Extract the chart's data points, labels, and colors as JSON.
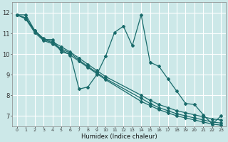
{
  "xlabel": "Humidex (Indice chaleur)",
  "bg_color": "#cce8e8",
  "grid_color": "#ffffff",
  "line_color": "#1a6b6b",
  "xlim": [
    -0.5,
    23.5
  ],
  "ylim": [
    6.5,
    12.5
  ],
  "yticks": [
    7,
    8,
    9,
    10,
    11,
    12
  ],
  "xticks": [
    0,
    1,
    2,
    3,
    4,
    5,
    6,
    7,
    8,
    9,
    10,
    11,
    12,
    13,
    14,
    15,
    16,
    17,
    18,
    19,
    20,
    21,
    22,
    23
  ],
  "series": [
    {
      "x": [
        0,
        1,
        2,
        3,
        4,
        5,
        6,
        7,
        8,
        9,
        10,
        11,
        12,
        13,
        14,
        15,
        16,
        17,
        18,
        19,
        20,
        21,
        22,
        23
      ],
      "y": [
        11.9,
        11.9,
        11.15,
        10.7,
        10.7,
        10.1,
        10.0,
        8.3,
        8.4,
        9.0,
        9.9,
        11.05,
        11.35,
        10.4,
        11.9,
        9.6,
        9.4,
        8.8,
        8.2,
        7.6,
        7.55,
        7.05,
        6.6,
        7.0
      ]
    },
    {
      "x": [
        0,
        1,
        2,
        3,
        4,
        5,
        6,
        7,
        8,
        9,
        10,
        14,
        15,
        16,
        17,
        18,
        19,
        20,
        21,
        22,
        23
      ],
      "y": [
        11.9,
        11.75,
        11.15,
        10.75,
        10.6,
        10.35,
        10.1,
        9.8,
        9.5,
        9.2,
        8.9,
        8.0,
        7.75,
        7.55,
        7.4,
        7.25,
        7.15,
        7.05,
        6.95,
        6.85,
        6.8
      ]
    },
    {
      "x": [
        0,
        1,
        2,
        3,
        4,
        5,
        6,
        7,
        8,
        9,
        10,
        14,
        15,
        16,
        17,
        18,
        19,
        20,
        21,
        22,
        23
      ],
      "y": [
        11.9,
        11.75,
        11.1,
        10.7,
        10.55,
        10.25,
        10.05,
        9.7,
        9.4,
        9.1,
        8.8,
        7.85,
        7.6,
        7.4,
        7.25,
        7.1,
        7.0,
        6.9,
        6.8,
        6.7,
        6.65
      ]
    },
    {
      "x": [
        0,
        1,
        2,
        3,
        4,
        5,
        6,
        7,
        8,
        9,
        10,
        14,
        15,
        16,
        17,
        18,
        19,
        20,
        21,
        22,
        23
      ],
      "y": [
        11.9,
        11.7,
        11.05,
        10.65,
        10.5,
        10.2,
        9.95,
        9.65,
        9.35,
        9.05,
        8.75,
        7.7,
        7.5,
        7.3,
        7.15,
        7.0,
        6.9,
        6.8,
        6.7,
        6.6,
        6.55
      ]
    }
  ]
}
